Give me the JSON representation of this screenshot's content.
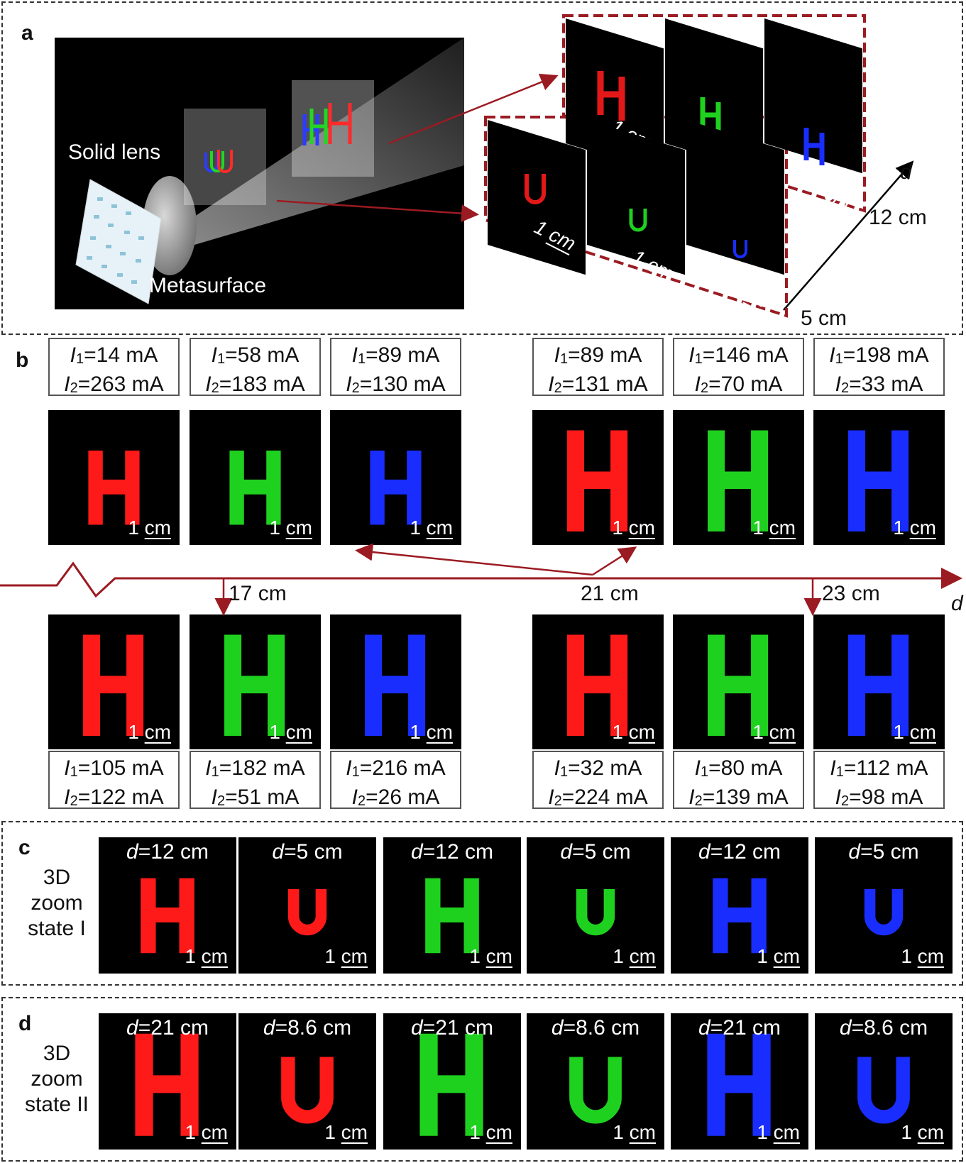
{
  "panel_a": {
    "label": "a",
    "solid_lens": "Solid lens",
    "metasurface": "Metasurface",
    "axis_d": "d",
    "dist_far": "12 cm",
    "dist_near": "5 cm",
    "scale": "1 cm"
  },
  "panel_b": {
    "label": "b",
    "axis_d": "d",
    "dist_17": "17 cm",
    "dist_21": "21 cm",
    "dist_23": "23 cm",
    "scale_num": "1",
    "scale_unit": "cm",
    "top": [
      {
        "i1": "14 mA",
        "i2": "263 mA",
        "color": "#ff1a1a"
      },
      {
        "i1": "58 mA",
        "i2": "183 mA",
        "color": "#1fd11f"
      },
      {
        "i1": "89 mA",
        "i2": "130 mA",
        "color": "#1a2dff"
      },
      {
        "i1": "89 mA",
        "i2": "131 mA",
        "color": "#ff1a1a"
      },
      {
        "i1": "146 mA",
        "i2": "70 mA",
        "color": "#1fd11f"
      },
      {
        "i1": "198 mA",
        "i2": "33 mA",
        "color": "#1a2dff"
      }
    ],
    "bottom": [
      {
        "i1": "105 mA",
        "i2": "122 mA",
        "color": "#ff1a1a"
      },
      {
        "i1": "182 mA",
        "i2": "51 mA",
        "color": "#1fd11f"
      },
      {
        "i1": "216 mA",
        "i2": "26 mA",
        "color": "#1a2dff"
      },
      {
        "i1": "32 mA",
        "i2": "224 mA",
        "color": "#ff1a1a"
      },
      {
        "i1": "80 mA",
        "i2": "139 mA",
        "color": "#1fd11f"
      },
      {
        "i1": "112 mA",
        "i2": "98 mA",
        "color": "#1a2dff"
      }
    ]
  },
  "panel_c": {
    "label": "c",
    "side_line1": "3D",
    "side_line2": "zoom",
    "side_line3": "state I",
    "tiles": [
      {
        "d": "=12 cm",
        "letter": "H",
        "color": "#ff1a1a"
      },
      {
        "d": "=5 cm",
        "letter": "U",
        "color": "#ff1a1a"
      },
      {
        "d": "=12 cm",
        "letter": "H",
        "color": "#1fd11f"
      },
      {
        "d": "=5 cm",
        "letter": "U",
        "color": "#1fd11f"
      },
      {
        "d": "=12 cm",
        "letter": "H",
        "color": "#1a2dff"
      },
      {
        "d": "=5 cm",
        "letter": "U",
        "color": "#1a2dff"
      }
    ]
  },
  "panel_d": {
    "label": "d",
    "side_line1": "3D",
    "side_line2": "zoom",
    "side_line3": "state II",
    "tiles": [
      {
        "d": "=21 cm",
        "letter": "H",
        "color": "#ff1a1a"
      },
      {
        "d": "=8.6 cm",
        "letter": "U",
        "color": "#ff1a1a"
      },
      {
        "d": "=21 cm",
        "letter": "H",
        "color": "#1fd11f"
      },
      {
        "d": "=8.6 cm",
        "letter": "U",
        "color": "#1fd11f"
      },
      {
        "d": "=21 cm",
        "letter": "H",
        "color": "#1a2dff"
      },
      {
        "d": "=8.6 cm",
        "letter": "U",
        "color": "#1a2dff"
      }
    ]
  }
}
